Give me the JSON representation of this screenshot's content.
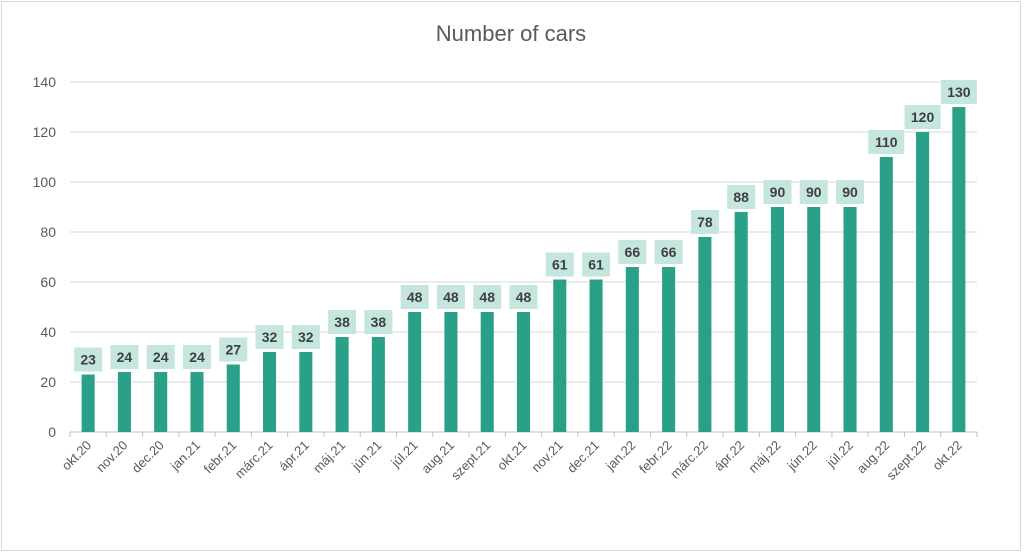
{
  "chart_data": {
    "type": "bar",
    "title": "Number of cars",
    "xlabel": "",
    "ylabel": "",
    "ylim": [
      0,
      140
    ],
    "yticks": [
      0,
      20,
      40,
      60,
      80,
      100,
      120,
      140
    ],
    "grid": true,
    "legend": "none",
    "bar_color": "#2aa088",
    "label_bg_color": "#c5e6de",
    "categories": [
      "okt.20",
      "nov.20",
      "dec.20",
      "jan.21",
      "febr.21",
      "márc.21",
      "ápr.21",
      "máj.21",
      "jún.21",
      "júl.21",
      "aug.21",
      "szept.21",
      "okt.21",
      "nov.21",
      "dec.21",
      "jan.22",
      "febr.22",
      "márc.22",
      "ápr.22",
      "máj.22",
      "jún.22",
      "júl.22",
      "aug.22",
      "szept.22",
      "okt.22"
    ],
    "values": [
      23,
      24,
      24,
      24,
      27,
      32,
      32,
      38,
      38,
      48,
      48,
      48,
      48,
      61,
      61,
      66,
      66,
      78,
      88,
      90,
      90,
      90,
      110,
      120,
      130
    ]
  }
}
